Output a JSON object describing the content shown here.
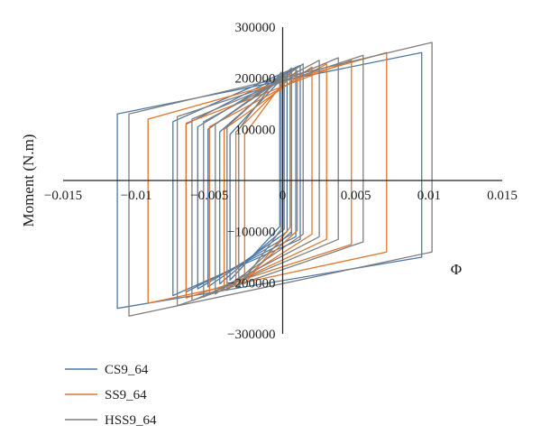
{
  "chart_data": {
    "type": "line",
    "title": "",
    "xlabel": "Φ",
    "ylabel": "Moment (N.m)",
    "xlim": [
      -0.015,
      0.015
    ],
    "ylim": [
      -300000,
      300000
    ],
    "x_ticks": [
      -0.015,
      -0.01,
      -0.005,
      0,
      0.005,
      0.01,
      0.015
    ],
    "x_tick_labels": [
      "−0.015",
      "−0.01",
      "−0.005",
      "0",
      "0.005",
      "0.01",
      "0.015"
    ],
    "y_ticks": [
      -300000,
      -200000,
      -100000,
      0,
      100000,
      200000,
      300000
    ],
    "y_tick_labels": [
      "−300000",
      "−200000",
      "−100000",
      "0",
      "100000",
      "200000",
      "300000"
    ],
    "grid": false,
    "legend_position": "bottom-left",
    "series": [
      {
        "name": "CS9_64",
        "color": "#4E79A7",
        "loops": [
          {
            "xmin": -0.0113,
            "xmax": 0.0095,
            "top_left": 130000,
            "top_right": 250000,
            "bot_left": -250000,
            "bot_right": -150000
          },
          {
            "xmin": -0.0075,
            "xmax": 0.0012,
            "top_left": 115000,
            "top_right": 225000,
            "bot_left": -225000,
            "bot_right": -115000
          },
          {
            "xmin": -0.0066,
            "xmax": 0.0009,
            "top_left": 110000,
            "top_right": 220000,
            "bot_left": -218000,
            "bot_right": -110000
          },
          {
            "xmin": -0.0058,
            "xmax": 0.0006,
            "top_left": 105000,
            "top_right": 215000,
            "bot_left": -212000,
            "bot_right": -105000
          },
          {
            "xmin": -0.0051,
            "xmax": 0.0003,
            "top_left": 100000,
            "top_right": 210000,
            "bot_left": -208000,
            "bot_right": -100000
          },
          {
            "xmin": -0.0043,
            "xmax": 0.0001,
            "top_left": 95000,
            "top_right": 205000,
            "bot_left": -202000,
            "bot_right": -95000
          },
          {
            "xmin": -0.0036,
            "xmax": -0.0002,
            "top_left": 90000,
            "top_right": 195000,
            "bot_left": -195000,
            "bot_right": -90000
          }
        ]
      },
      {
        "name": "SS9_64",
        "color": "#E0762E",
        "loops": [
          {
            "xmin": -0.0092,
            "xmax": 0.0071,
            "top_left": 120000,
            "top_right": 250000,
            "bot_left": -240000,
            "bot_right": -140000
          },
          {
            "xmin": -0.0066,
            "xmax": 0.0047,
            "top_left": 112000,
            "top_right": 235000,
            "bot_left": -230000,
            "bot_right": -125000
          },
          {
            "xmin": -0.005,
            "xmax": 0.003,
            "top_left": 105000,
            "top_right": 228000,
            "bot_left": -222000,
            "bot_right": -115000
          },
          {
            "xmin": -0.004,
            "xmax": 0.002,
            "top_left": 100000,
            "top_right": 222000,
            "bot_left": -215000,
            "bot_right": -105000
          },
          {
            "xmin": -0.0032,
            "xmax": 0.001,
            "top_left": 95000,
            "top_right": 215000,
            "bot_left": -208000,
            "bot_right": -98000
          },
          {
            "xmin": -0.0026,
            "xmax": 0.0005,
            "top_left": 90000,
            "top_right": 210000,
            "bot_left": -202000,
            "bot_right": -92000
          }
        ]
      },
      {
        "name": "HSS9_64",
        "color": "#7F7F7F",
        "loops": [
          {
            "xmin": -0.0105,
            "xmax": 0.0102,
            "top_left": 130000,
            "top_right": 270000,
            "bot_left": -265000,
            "bot_right": -140000
          },
          {
            "xmin": -0.0072,
            "xmax": 0.0055,
            "top_left": 125000,
            "top_right": 245000,
            "bot_left": -245000,
            "bot_right": -120000
          },
          {
            "xmin": -0.0062,
            "xmax": 0.0038,
            "top_left": 120000,
            "top_right": 240000,
            "bot_left": -235000,
            "bot_right": -115000
          },
          {
            "xmin": -0.0054,
            "xmax": 0.0025,
            "top_left": 115000,
            "top_right": 235000,
            "bot_left": -228000,
            "bot_right": -110000
          },
          {
            "xmin": -0.0046,
            "xmax": 0.0014,
            "top_left": 110000,
            "top_right": 228000,
            "bot_left": -222000,
            "bot_right": -105000
          },
          {
            "xmin": -0.0038,
            "xmax": 0.0006,
            "top_left": 105000,
            "top_right": 220000,
            "bot_left": -215000,
            "bot_right": -100000
          },
          {
            "xmin": -0.003,
            "xmax": -0.0001,
            "top_left": 100000,
            "top_right": 212000,
            "bot_left": -208000,
            "bot_right": -95000
          }
        ]
      }
    ]
  }
}
